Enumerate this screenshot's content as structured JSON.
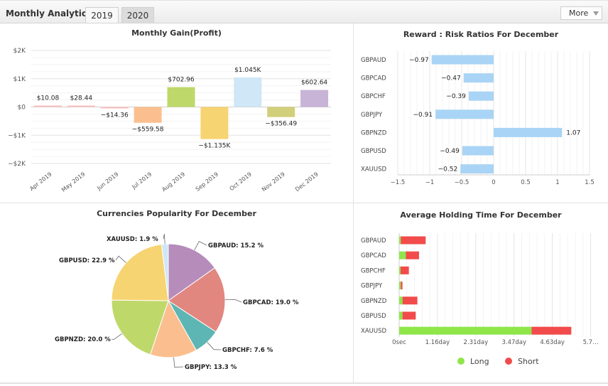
{
  "header": {
    "title": "Monthly Analytics",
    "tabs": [
      "2019",
      "2020"
    ],
    "more_label": "More"
  },
  "monthly_gain": {
    "title": "Monthly Gain(Profit)",
    "y_ticks": [
      "$2K",
      "$1K",
      "$0",
      "-$1K",
      "-$2K"
    ]
  },
  "reward_risk": {
    "title": "Reward : Risk Ratios For December",
    "x_ticks": [
      "-1.5",
      "-1",
      "-0.5",
      "0",
      "0.5",
      "1",
      "1.5"
    ]
  },
  "popularity": {
    "title": "Currencies Popularity For December"
  },
  "holding": {
    "title": "Average Holding Time For December",
    "x_ticks": [
      "0sec",
      "1.16day",
      "2.31day",
      "3.47day",
      "4.63day",
      "5.7…"
    ],
    "legend": [
      "Long",
      "Short"
    ]
  },
  "colors": {
    "rr_bar": "#a9d4f5",
    "long": "#8ee64a",
    "short": "#f24b4b",
    "pie": [
      "#b68cbb",
      "#e28680",
      "#5db6b3",
      "#fbbf8f",
      "#bfd86a",
      "#f7d472",
      "#cfe7f6"
    ],
    "gain": [
      "#fbbfbf",
      "#fbbfbf",
      "#fbbfbf",
      "#fbbf8f",
      "#bfd86a",
      "#f7d472",
      "#cfe7f6",
      "#d2cf7a",
      "#c8b4d6"
    ]
  },
  "chart_data": [
    {
      "type": "bar",
      "title": "Monthly Gain(Profit)",
      "categories": [
        "Apr 2019",
        "May 2019",
        "Jun 2019",
        "Jul 2019",
        "Aug 2019",
        "Sep 2019",
        "Oct 2019",
        "Nov 2019",
        "Dec 2019"
      ],
      "values": [
        10.08,
        28.44,
        -14.36,
        -559.58,
        702.96,
        -1135,
        1045,
        -356.49,
        602.64
      ],
      "labels": [
        "$10.08",
        "$28.44",
        "-$14.36",
        "-$559.58",
        "$702.96",
        "-$1.135K",
        "$1.045K",
        "-$356.49",
        "$602.64"
      ],
      "ylim": [
        -2000,
        2000
      ]
    },
    {
      "type": "bar",
      "title": "Reward : Risk Ratios For December",
      "categories": [
        "GBPAUD",
        "GBPCAD",
        "GBPCHF",
        "GBPJPY",
        "GBPNZD",
        "GBPUSD",
        "XAUUSD"
      ],
      "values": [
        -0.97,
        -0.47,
        -0.39,
        -0.91,
        1.07,
        -0.49,
        -0.52
      ],
      "labels": [
        "-0.97",
        "-0.47",
        "-0.39",
        "-0.91",
        "1.07",
        "-0.49",
        "-0.52"
      ],
      "xlim": [
        -1.5,
        1.5
      ]
    },
    {
      "type": "pie",
      "title": "Currencies Popularity For December",
      "categories": [
        "GBPAUD",
        "GBPCAD",
        "GBPCHF",
        "GBPJPY",
        "GBPNZD",
        "GBPUSD",
        "XAUUSD"
      ],
      "values": [
        15.2,
        19.0,
        7.6,
        13.3,
        20.0,
        22.9,
        1.9
      ],
      "labels": [
        "GBPAUD: 15.2 %",
        "GBPCAD: 19.0 %",
        "GBPCHF: 7.6 %",
        "GBPJPY: 13.3 %",
        "GBPNZD: 20.0 %",
        "GBPUSD: 22.9 %",
        "XAUUSD: 1.9 %"
      ]
    },
    {
      "type": "bar",
      "title": "Average Holding Time For December",
      "categories": [
        "GBPAUD",
        "GBPCAD",
        "GBPCHF",
        "GBPJPY",
        "GBPNZD",
        "GBPUSD",
        "XAUUSD"
      ],
      "series": [
        {
          "name": "Long",
          "values": [
            0.05,
            0.2,
            0.0,
            0.05,
            0.1,
            0.1,
            4.0
          ]
        },
        {
          "name": "Short",
          "values": [
            0.75,
            0.4,
            0.25,
            0.05,
            0.45,
            0.4,
            1.2
          ]
        }
      ],
      "unit": "days"
    }
  ]
}
